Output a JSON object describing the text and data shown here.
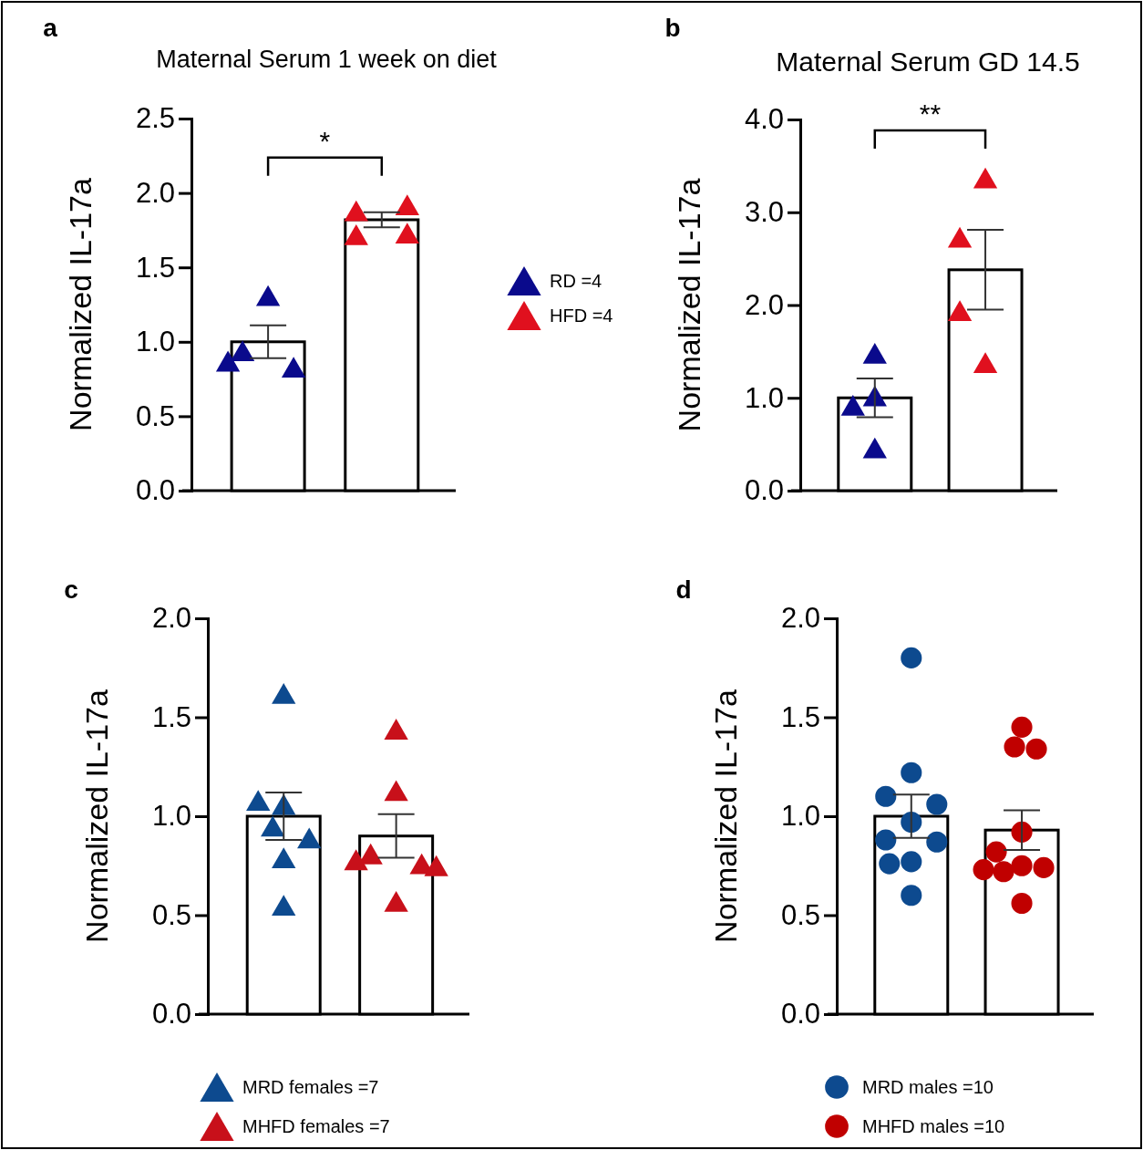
{
  "chart_data": [
    {
      "type": "bar",
      "title": "a",
      "subtitle": "Maternal Serum 1 week on diet",
      "ylabel": "Normalized IL-17a",
      "categories": [
        null,
        null
      ],
      "ylim": [
        0,
        2.5
      ],
      "yticks": [
        {
          "value": 0,
          "label": "0.0"
        },
        0.5,
        {
          "value": 1,
          "label": "1.0"
        },
        1.5,
        {
          "value": 2,
          "label": "2.0"
        },
        2.5
      ],
      "legend": "right",
      "annotations": [
        "*"
      ],
      "series": [
        {
          "color": "#ffffff",
          "values": [
            1.0,
            1.82
          ],
          "errors": [
            0.11,
            0.05
          ]
        },
        {
          "type": "scatter",
          "name": "RD =4",
          "color": "#0a0a8c",
          "marker": "triangle",
          "values": [
            1.31,
            null
          ]
        },
        {
          "type": "scatter",
          "color": "#0a0a8c",
          "marker": "triangle",
          "values": [
            0.94,
            null
          ]
        },
        {
          "type": "scatter",
          "color": "#0a0a8c",
          "marker": "triangle",
          "values": [
            0.83,
            null
          ]
        },
        {
          "type": "scatter",
          "color": "#0a0a8c",
          "marker": "triangle",
          "values": [
            0.87,
            null
          ]
        },
        {
          "type": "scatter",
          "name": "HFD =4",
          "color": "#e0101e",
          "marker": "triangle",
          "values": [
            null,
            1.88
          ]
        },
        {
          "type": "scatter",
          "color": "#e0101e",
          "marker": "triangle",
          "values": [
            null,
            1.92
          ]
        },
        {
          "type": "scatter",
          "color": "#e0101e",
          "marker": "triangle",
          "values": [
            null,
            1.72
          ]
        },
        {
          "type": "scatter",
          "color": "#e0101e",
          "marker": "triangle",
          "values": [
            null,
            1.73
          ]
        }
      ]
    },
    {
      "type": "bar",
      "title": "b",
      "subtitle": "Maternal Serum  GD 14.5",
      "ylabel": "Normalized IL-17a",
      "categories": [
        null,
        null
      ],
      "ylim": [
        0,
        4
      ],
      "yticks": [
        {
          "value": 0,
          "label": "0.0"
        },
        {
          "value": 1,
          "label": "1.0"
        },
        {
          "value": 2,
          "label": "2.0"
        },
        {
          "value": 3,
          "label": "3.0"
        },
        {
          "value": 4,
          "label": "4.0"
        }
      ],
      "annotations": [
        "**"
      ],
      "series": [
        {
          "color": "#ffffff",
          "values": [
            1.0,
            2.38
          ],
          "errors": [
            0.21,
            0.43
          ]
        },
        {
          "type": "scatter",
          "color": "#0a0a8c",
          "marker": "triangle",
          "values": [
            1.48,
            null
          ]
        },
        {
          "type": "scatter",
          "color": "#0a0a8c",
          "marker": "triangle",
          "values": [
            1.02,
            null
          ]
        },
        {
          "type": "scatter",
          "color": "#0a0a8c",
          "marker": "triangle",
          "values": [
            0.92,
            null
          ]
        },
        {
          "type": "scatter",
          "color": "#0a0a8c",
          "marker": "triangle",
          "values": [
            0.46,
            null
          ]
        },
        {
          "type": "scatter",
          "color": "#e0101e",
          "marker": "triangle",
          "values": [
            null,
            3.37
          ]
        },
        {
          "type": "scatter",
          "color": "#e0101e",
          "marker": "triangle",
          "values": [
            null,
            2.73
          ]
        },
        {
          "type": "scatter",
          "color": "#e0101e",
          "marker": "triangle",
          "values": [
            null,
            1.94
          ]
        },
        {
          "type": "scatter",
          "color": "#e0101e",
          "marker": "triangle",
          "values": [
            null,
            1.38
          ]
        }
      ]
    },
    {
      "type": "bar",
      "title": "c",
      "ylabel": "Normalized IL-17a",
      "categories": [
        null,
        null
      ],
      "ylim": [
        0,
        2
      ],
      "yticks": [
        {
          "value": 0,
          "label": "0.0"
        },
        0.5,
        {
          "value": 1,
          "label": "1.0"
        },
        1.5,
        {
          "value": 2,
          "label": "2.0"
        }
      ],
      "legend": "bottom",
      "series": [
        {
          "color": "#ffffff",
          "values": [
            1.0,
            0.9
          ],
          "errors": [
            0.12,
            0.11
          ]
        },
        {
          "type": "scatter",
          "name": "MRD females =7",
          "color": "#0d4a8f",
          "marker": "triangle",
          "values": [
            1.62,
            null
          ]
        },
        {
          "type": "scatter",
          "color": "#0d4a8f",
          "marker": "triangle",
          "values": [
            1.06,
            null
          ]
        },
        {
          "type": "scatter",
          "color": "#0d4a8f",
          "marker": "triangle",
          "values": [
            1.08,
            null
          ]
        },
        {
          "type": "scatter",
          "color": "#0d4a8f",
          "marker": "triangle",
          "values": [
            0.95,
            null
          ]
        },
        {
          "type": "scatter",
          "color": "#0d4a8f",
          "marker": "triangle",
          "values": [
            0.89,
            null
          ]
        },
        {
          "type": "scatter",
          "color": "#0d4a8f",
          "marker": "triangle",
          "values": [
            0.79,
            null
          ]
        },
        {
          "type": "scatter",
          "color": "#0d4a8f",
          "marker": "triangle",
          "values": [
            0.55,
            null
          ]
        },
        {
          "type": "scatter",
          "name": "MHFD females =7",
          "color": "#c8101a",
          "marker": "triangle",
          "values": [
            null,
            1.44
          ]
        },
        {
          "type": "scatter",
          "color": "#c8101a",
          "marker": "triangle",
          "values": [
            null,
            1.13
          ]
        },
        {
          "type": "scatter",
          "color": "#c8101a",
          "marker": "triangle",
          "values": [
            null,
            0.81
          ]
        },
        {
          "type": "scatter",
          "color": "#c8101a",
          "marker": "triangle",
          "values": [
            null,
            0.76
          ]
        },
        {
          "type": "scatter",
          "color": "#c8101a",
          "marker": "triangle",
          "values": [
            null,
            0.78
          ]
        },
        {
          "type": "scatter",
          "color": "#c8101a",
          "marker": "triangle",
          "values": [
            null,
            0.75
          ]
        },
        {
          "type": "scatter",
          "color": "#c8101a",
          "marker": "triangle",
          "values": [
            null,
            0.57
          ]
        }
      ]
    },
    {
      "type": "bar",
      "title": "d",
      "ylabel": "Normalized IL-17a",
      "categories": [
        null,
        null
      ],
      "ylim": [
        0,
        2
      ],
      "yticks": [
        {
          "value": 0,
          "label": "0.0"
        },
        0.5,
        {
          "value": 1,
          "label": "1.0"
        },
        1.5,
        {
          "value": 2,
          "label": "2.0"
        }
      ],
      "legend": "bottom",
      "series": [
        {
          "color": "#ffffff",
          "values": [
            1.0,
            0.93
          ],
          "errors": [
            0.11,
            0.1
          ]
        },
        {
          "type": "scatter",
          "name": "MRD males =10",
          "color": "#0d4a8f",
          "marker": "circle",
          "values": [
            1.8,
            null
          ]
        },
        {
          "type": "scatter",
          "color": "#0d4a8f",
          "marker": "circle",
          "values": [
            1.22,
            null
          ]
        },
        {
          "type": "scatter",
          "color": "#0d4a8f",
          "marker": "circle",
          "values": [
            1.1,
            null
          ]
        },
        {
          "type": "scatter",
          "color": "#0d4a8f",
          "marker": "circle",
          "values": [
            1.06,
            null
          ]
        },
        {
          "type": "scatter",
          "color": "#0d4a8f",
          "marker": "circle",
          "values": [
            0.97,
            null
          ]
        },
        {
          "type": "scatter",
          "color": "#0d4a8f",
          "marker": "circle",
          "values": [
            0.88,
            null
          ]
        },
        {
          "type": "scatter",
          "color": "#0d4a8f",
          "marker": "circle",
          "values": [
            0.87,
            null
          ]
        },
        {
          "type": "scatter",
          "color": "#0d4a8f",
          "marker": "circle",
          "values": [
            0.77,
            null
          ]
        },
        {
          "type": "scatter",
          "color": "#0d4a8f",
          "marker": "circle",
          "values": [
            0.76,
            null
          ]
        },
        {
          "type": "scatter",
          "color": "#0d4a8f",
          "marker": "circle",
          "values": [
            0.6,
            null
          ]
        },
        {
          "type": "scatter",
          "name": "MHFD males =10",
          "color": "#c00000",
          "marker": "circle",
          "values": [
            null,
            1.45
          ]
        },
        {
          "type": "scatter",
          "color": "#c00000",
          "marker": "circle",
          "values": [
            null,
            1.35
          ]
        },
        {
          "type": "scatter",
          "color": "#c00000",
          "marker": "circle",
          "values": [
            null,
            1.34
          ]
        },
        {
          "type": "scatter",
          "color": "#c00000",
          "marker": "circle",
          "values": [
            null,
            0.92
          ]
        },
        {
          "type": "scatter",
          "color": "#c00000",
          "marker": "circle",
          "values": [
            null,
            0.82
          ]
        },
        {
          "type": "scatter",
          "color": "#c00000",
          "marker": "circle",
          "values": [
            null,
            0.75
          ]
        },
        {
          "type": "scatter",
          "color": "#c00000",
          "marker": "circle",
          "values": [
            null,
            0.74
          ]
        },
        {
          "type": "scatter",
          "color": "#c00000",
          "marker": "circle",
          "values": [
            null,
            0.73
          ]
        },
        {
          "type": "scatter",
          "color": "#c00000",
          "marker": "circle",
          "values": [
            null,
            0.72
          ]
        },
        {
          "type": "scatter",
          "color": "#c00000",
          "marker": "circle",
          "values": [
            null,
            0.56
          ]
        }
      ]
    }
  ]
}
